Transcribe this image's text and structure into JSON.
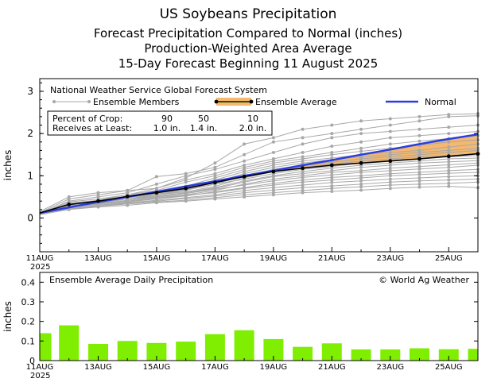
{
  "titles": {
    "line1": "US Soybeans Precipitation",
    "line2": "Forecast Precipitation Compared to Normal (inches)",
    "line3": "Production-Weighted Area Average",
    "line4": "15-Day Forecast Beginning 11 August 2025"
  },
  "colors": {
    "ensemble": "#a8a8a8",
    "average": "#000000",
    "normal": "#2a3ee0",
    "fill_above_normal": "#f4b870",
    "fill_outline": "#88cc00",
    "bars": "#7fee00",
    "frame": "#000000"
  },
  "chart_data": [
    {
      "type": "line",
      "ylabel": "inches",
      "ylim": [
        -0.8,
        3.3
      ],
      "yticks": [
        "0",
        "1",
        "2",
        "3"
      ],
      "x_tick_labels": [
        "11AUG",
        "13AUG",
        "15AUG",
        "17AUG",
        "19AUG",
        "21AUG",
        "23AUG",
        "25AUG"
      ],
      "x_year_label": "2025",
      "x": [
        0,
        1,
        2,
        3,
        4,
        5,
        6,
        7,
        8,
        9,
        10,
        11,
        12,
        13,
        14,
        15
      ],
      "legend": {
        "system": "National Weather Service Global Forecast System",
        "ensemble_label": "Ensemble Members",
        "average_label": "Ensemble Average",
        "normal_label": "Normal"
      },
      "crop_table": {
        "row1_label": "Percent of Crop:",
        "row1_values": [
          "90",
          "50",
          "10"
        ],
        "row2_label": "Receives at Least:",
        "row2_values": [
          "1.0 in.",
          "1.4 in.",
          "2.0 in."
        ]
      },
      "series": [
        {
          "name": "Ensemble Average",
          "values": [
            0.12,
            0.32,
            0.4,
            0.51,
            0.6,
            0.7,
            0.84,
            0.98,
            1.1,
            1.18,
            1.25,
            1.3,
            1.35,
            1.4,
            1.46,
            1.52
          ]
        },
        {
          "name": "Normal",
          "values": [
            0.12,
            0.25,
            0.38,
            0.5,
            0.62,
            0.75,
            0.87,
            1.0,
            1.12,
            1.25,
            1.37,
            1.5,
            1.62,
            1.75,
            1.87,
            1.98
          ]
        }
      ],
      "members": [
        [
          0.15,
          0.5,
          0.6,
          0.65,
          0.7,
          0.95,
          1.3,
          1.75,
          1.9,
          2.1,
          2.2,
          2.3,
          2.35,
          2.4,
          2.45,
          2.47
        ],
        [
          0.12,
          0.45,
          0.55,
          0.65,
          0.98,
          1.05,
          1.2,
          1.5,
          1.8,
          1.9,
          2.0,
          2.1,
          2.2,
          2.3,
          2.4,
          2.42
        ],
        [
          0.1,
          0.4,
          0.5,
          0.6,
          0.8,
          1.0,
          1.15,
          1.35,
          1.55,
          1.75,
          1.9,
          2.0,
          2.05,
          2.1,
          2.15,
          2.2
        ],
        [
          0.12,
          0.38,
          0.45,
          0.55,
          0.7,
          0.9,
          1.05,
          1.25,
          1.4,
          1.55,
          1.7,
          1.8,
          1.9,
          1.95,
          2.0,
          2.05
        ],
        [
          0.11,
          0.35,
          0.42,
          0.55,
          0.65,
          0.85,
          1.0,
          1.2,
          1.35,
          1.45,
          1.55,
          1.65,
          1.75,
          1.82,
          1.88,
          1.95
        ],
        [
          0.1,
          0.3,
          0.4,
          0.5,
          0.6,
          0.75,
          0.95,
          1.15,
          1.3,
          1.4,
          1.5,
          1.58,
          1.65,
          1.72,
          1.8,
          1.85
        ],
        [
          0.13,
          0.28,
          0.4,
          0.5,
          0.6,
          0.7,
          0.9,
          1.1,
          1.25,
          1.35,
          1.42,
          1.5,
          1.55,
          1.6,
          1.68,
          1.75
        ],
        [
          0.1,
          0.3,
          0.38,
          0.45,
          0.55,
          0.65,
          0.85,
          1.05,
          1.2,
          1.3,
          1.38,
          1.45,
          1.5,
          1.55,
          1.6,
          1.65
        ],
        [
          0.12,
          0.32,
          0.4,
          0.5,
          0.58,
          0.68,
          0.8,
          1.0,
          1.15,
          1.25,
          1.32,
          1.4,
          1.45,
          1.5,
          1.55,
          1.6
        ],
        [
          0.09,
          0.28,
          0.36,
          0.45,
          0.55,
          0.62,
          0.75,
          0.95,
          1.1,
          1.2,
          1.28,
          1.35,
          1.4,
          1.45,
          1.48,
          1.52
        ],
        [
          0.11,
          0.3,
          0.38,
          0.48,
          0.56,
          0.66,
          0.8,
          0.92,
          1.05,
          1.15,
          1.22,
          1.3,
          1.35,
          1.4,
          1.45,
          1.48
        ],
        [
          0.1,
          0.25,
          0.35,
          0.45,
          0.5,
          0.6,
          0.72,
          0.88,
          1.0,
          1.1,
          1.18,
          1.25,
          1.3,
          1.35,
          1.4,
          1.42
        ],
        [
          0.12,
          0.3,
          0.36,
          0.45,
          0.52,
          0.6,
          0.7,
          0.85,
          0.98,
          1.05,
          1.12,
          1.2,
          1.25,
          1.3,
          1.33,
          1.36
        ],
        [
          0.08,
          0.25,
          0.33,
          0.4,
          0.48,
          0.55,
          0.65,
          0.8,
          0.92,
          1.0,
          1.08,
          1.12,
          1.18,
          1.22,
          1.26,
          1.3
        ],
        [
          0.1,
          0.28,
          0.34,
          0.42,
          0.5,
          0.58,
          0.68,
          0.78,
          0.88,
          0.96,
          1.02,
          1.08,
          1.12,
          1.16,
          1.2,
          1.25
        ],
        [
          0.09,
          0.22,
          0.3,
          0.38,
          0.45,
          0.52,
          0.62,
          0.72,
          0.82,
          0.9,
          0.96,
          1.0,
          1.05,
          1.08,
          1.12,
          1.15
        ],
        [
          0.11,
          0.25,
          0.32,
          0.4,
          0.46,
          0.54,
          0.6,
          0.7,
          0.78,
          0.85,
          0.9,
          0.95,
          1.0,
          1.03,
          1.06,
          1.08
        ],
        [
          0.1,
          0.22,
          0.3,
          0.36,
          0.42,
          0.48,
          0.55,
          0.65,
          0.72,
          0.78,
          0.84,
          0.88,
          0.92,
          0.95,
          0.98,
          1.0
        ],
        [
          0.08,
          0.2,
          0.28,
          0.35,
          0.4,
          0.46,
          0.52,
          0.6,
          0.66,
          0.72,
          0.76,
          0.8,
          0.85,
          0.88,
          0.9,
          0.92
        ],
        [
          0.09,
          0.22,
          0.28,
          0.33,
          0.38,
          0.42,
          0.48,
          0.55,
          0.6,
          0.65,
          0.7,
          0.74,
          0.78,
          0.8,
          0.82,
          0.85
        ],
        [
          0.1,
          0.2,
          0.26,
          0.3,
          0.36,
          0.4,
          0.45,
          0.5,
          0.55,
          0.6,
          0.63,
          0.66,
          0.7,
          0.73,
          0.75,
          0.72
        ]
      ]
    },
    {
      "type": "bar",
      "title": "Ensemble Average Daily Precipitation",
      "credit": "© World Ag Weather",
      "ylabel": "inches",
      "ylim": [
        0,
        0.45
      ],
      "yticks": [
        "0",
        "0.1",
        "0.2",
        "0.3",
        "0.4"
      ],
      "x_tick_labels": [
        "11AUG",
        "13AUG",
        "15AUG",
        "17AUG",
        "19AUG",
        "21AUG",
        "23AUG",
        "25AUG"
      ],
      "x_year_label": "2025",
      "values": [
        0.14,
        0.18,
        0.085,
        0.1,
        0.09,
        0.097,
        0.135,
        0.155,
        0.11,
        0.07,
        0.088,
        0.057,
        0.057,
        0.063,
        0.058,
        0.06
      ]
    }
  ]
}
